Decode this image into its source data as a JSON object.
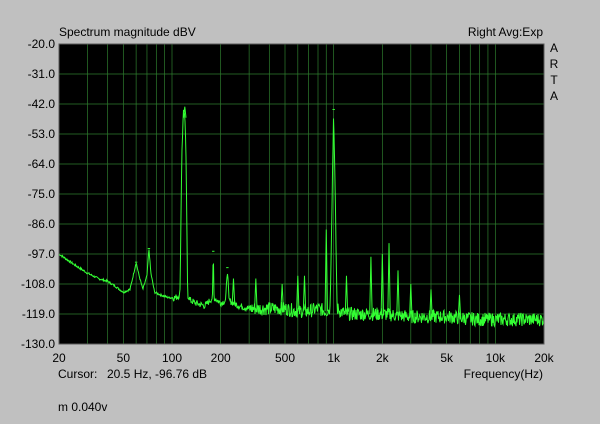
{
  "header": {
    "title": "Spectrum magnitude dBV",
    "right_text": "Right Avg:Exp",
    "brand_letters": [
      "A",
      "R",
      "T",
      "A"
    ]
  },
  "footer": {
    "cursor_label": "Cursor:",
    "cursor_value": "20.5 Hz, -96.76 dB",
    "x_axis_label": "Frequency(Hz)",
    "bottom_note": "m 0.040v"
  },
  "colors": {
    "background": "#c0c0c0",
    "plot_background": "#000000",
    "grid": "#2e7d2e",
    "trace": "#33ff33"
  },
  "chart_data": {
    "type": "line",
    "title": "Spectrum magnitude dBV",
    "xlabel": "Frequency(Hz)",
    "ylabel": "",
    "x_scale": "log",
    "xlim": [
      20,
      20000
    ],
    "ylim": [
      -130,
      -20
    ],
    "grid": true,
    "x_ticks": [
      {
        "value": 20,
        "label": "20"
      },
      {
        "value": 50,
        "label": "50"
      },
      {
        "value": 100,
        "label": "100"
      },
      {
        "value": 200,
        "label": "200"
      },
      {
        "value": 500,
        "label": "500"
      },
      {
        "value": 1000,
        "label": "1k"
      },
      {
        "value": 2000,
        "label": "2k"
      },
      {
        "value": 5000,
        "label": "5k"
      },
      {
        "value": 10000,
        "label": "10k"
      },
      {
        "value": 20000,
        "label": "20k"
      }
    ],
    "y_ticks": [
      {
        "value": -20,
        "label": "-20.0"
      },
      {
        "value": -31,
        "label": "-31.0"
      },
      {
        "value": -42,
        "label": "-42.0"
      },
      {
        "value": -53,
        "label": "-53.0"
      },
      {
        "value": -64,
        "label": "-64.0"
      },
      {
        "value": -75,
        "label": "-75.0"
      },
      {
        "value": -86,
        "label": "-86.0"
      },
      {
        "value": -97,
        "label": "-97.0"
      },
      {
        "value": -108,
        "label": "-108.0"
      },
      {
        "value": -119,
        "label": "-119.0"
      },
      {
        "value": -130,
        "label": "-130.0"
      }
    ],
    "series": [
      {
        "color": "#33ff33",
        "x": [
          20,
          25,
          30,
          35,
          40,
          45,
          50,
          55,
          58,
          60,
          62,
          66,
          70,
          72,
          74,
          78,
          85,
          95,
          105,
          112,
          115,
          118,
          120,
          122,
          125,
          130,
          140,
          160,
          178,
          180,
          182,
          200,
          215,
          220,
          225,
          240,
          260,
          300,
          400,
          500,
          600,
          700,
          800,
          900,
          950,
          1000,
          1050,
          1100,
          1200,
          1500,
          2000,
          3000,
          5000,
          8000,
          12000,
          20000
        ],
        "y": [
          -97,
          -101,
          -104,
          -106,
          -107,
          -109,
          -111,
          -110,
          -104,
          -100,
          -104,
          -110,
          -105,
          -95,
          -104,
          -111,
          -112,
          -113,
          -113,
          -112,
          -60,
          -43,
          -47,
          -60,
          -112,
          -114,
          -115,
          -116,
          -113,
          -96,
          -113,
          -115,
          -114,
          -102,
          -114,
          -115,
          -116,
          -117,
          -117,
          -117,
          -118,
          -118,
          -117,
          -118,
          -117,
          -44,
          -117,
          -118,
          -119,
          -119,
          -119,
          -120,
          -120,
          -121,
          -121,
          -121
        ]
      }
    ],
    "peaks": [
      {
        "x": 60,
        "y": -100
      },
      {
        "x": 72,
        "y": -95
      },
      {
        "x": 120,
        "y": -43
      },
      {
        "x": 180,
        "y": -96
      },
      {
        "x": 220,
        "y": -102
      },
      {
        "x": 240,
        "y": -106
      },
      {
        "x": 330,
        "y": -106
      },
      {
        "x": 480,
        "y": -108
      },
      {
        "x": 600,
        "y": -105
      },
      {
        "x": 660,
        "y": -105
      },
      {
        "x": 900,
        "y": -88
      },
      {
        "x": 1000,
        "y": -44
      },
      {
        "x": 1200,
        "y": -105
      },
      {
        "x": 1700,
        "y": -98
      },
      {
        "x": 2000,
        "y": -97
      },
      {
        "x": 2200,
        "y": -93
      },
      {
        "x": 2500,
        "y": -103
      },
      {
        "x": 3000,
        "y": -108
      },
      {
        "x": 4000,
        "y": -110
      },
      {
        "x": 6000,
        "y": -112
      }
    ]
  }
}
